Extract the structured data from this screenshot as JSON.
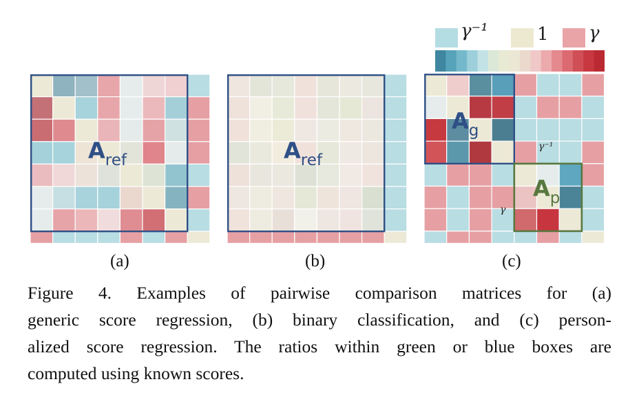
{
  "legend": {
    "low_label": "γ⁻¹",
    "mid_label": "1",
    "high_label": "γ",
    "low_color": "#b4dde3",
    "mid_color": "#ece9d0",
    "high_color": "#e9a4a8",
    "gradient": [
      "#3f87a0",
      "#57a4ba",
      "#74b9cb",
      "#9ccfd9",
      "#c2e2e5",
      "#dbe8d8",
      "#e8ead4",
      "#ece6d4",
      "#ecd9cd",
      "#efc8c7",
      "#ecaaac",
      "#e4898e",
      "#dc6a71",
      "#d04f57",
      "#c83841",
      "#bb2a33"
    ]
  },
  "panels": [
    {
      "id": "a",
      "label": "(a)",
      "matrix_label": "A",
      "matrix_sub": "ref"
    },
    {
      "id": "b",
      "label": "(b)",
      "matrix_label": "A",
      "matrix_sub": "ref"
    },
    {
      "id": "c",
      "label": "(c)",
      "g_label": "A",
      "g_sub": "g",
      "p_label": "A",
      "p_sub": "p",
      "gamma_inv": "γ⁻¹",
      "gamma": "γ"
    }
  ],
  "matrices": {
    "a": [
      [
        "#ece9d6",
        "#8fb3bf",
        "#a2c0c9",
        "#e7a6aa",
        "#e6ecec",
        "#efd6d6",
        "#f0d0d1",
        "#b8dde3"
      ],
      [
        "#c37076",
        "#ece9d6",
        "#a6d3dc",
        "#e7a6aa",
        "#e6ecec",
        "#ebb9bb",
        "#a5cfd8",
        "#e6a0a4"
      ],
      [
        "#c96d73",
        "#de8a8f",
        "#ece9d6",
        "#e9b5b8",
        "#e5ebea",
        "#e6a3a7",
        "#cfe1e1",
        "#e6a0a4"
      ],
      [
        "#a5d1da",
        "#a7d3dc",
        "#ede4d6",
        "#ece9d6",
        "#e2e3d9",
        "#e0858b",
        "#e5ebea",
        "#e6a0a4"
      ],
      [
        "#ebbcbf",
        "#f0d8d8",
        "#ede2da",
        "#dfe2da",
        "#ece9d6",
        "#dde3d5",
        "#92c4cf",
        "#b8dde3"
      ],
      [
        "#e6ecec",
        "#c6dfe2",
        "#a8d3dc",
        "#a6d2db",
        "#ead8cf",
        "#ece9d6",
        "#85b4c0",
        "#e6a0a4"
      ],
      [
        "#e6ecec",
        "#e6a4a8",
        "#ebb7b9",
        "#f0dcdc",
        "#df8d92",
        "#d16f75",
        "#ece9d6",
        "#b8dde3"
      ],
      [
        "#e6a0a4",
        "#b8dde3",
        "#b8dde3",
        "#b8dde3",
        "#e6a0a4",
        "#b8dde3",
        "#e6a0a4",
        "#ece9d6"
      ]
    ],
    "b": [
      [
        "#efe6df",
        "#e4e5d9",
        "#e6e8dc",
        "#f0e2db",
        "#e6e6da",
        "#ece9e1",
        "#e7e7de",
        "#b8dde3"
      ],
      [
        "#eee2da",
        "#f1efe4",
        "#e8ead9",
        "#f0e1dc",
        "#e3e6d9",
        "#e6e8d6",
        "#ece4de",
        "#b8dde3"
      ],
      [
        "#f0e2db",
        "#f0eee0",
        "#ecebd8",
        "#efe7e2",
        "#ecebe1",
        "#eee8e1",
        "#ebe8e0",
        "#b8dde3"
      ],
      [
        "#e1e4d9",
        "#e9e9dd",
        "#f2ecdf",
        "#f0e2db",
        "#e6e8d9",
        "#efe9e3",
        "#ece6df",
        "#b8dde3"
      ],
      [
        "#ede1d9",
        "#e9e6dd",
        "#ebe8e0",
        "#dee2d6",
        "#e7e8de",
        "#f1e9e3",
        "#f0e3dd",
        "#b8dde3"
      ],
      [
        "#eee6e1",
        "#eeece1",
        "#efe6df",
        "#e5e7d7",
        "#efe4dc",
        "#efe5e1",
        "#d9e0d2",
        "#b8dde3"
      ],
      [
        "#f0e3dc",
        "#eeebe0",
        "#e9dfd9",
        "#f1f0e9",
        "#eee6e1",
        "#efe4df",
        "#dfe3d9",
        "#b8dde3"
      ],
      [
        "#e6a0a4",
        "#e6a0a4",
        "#e6a0a4",
        "#e6a0a4",
        "#e6a0a4",
        "#e6a0a4",
        "#e6a0a4",
        "#ece9d6"
      ]
    ],
    "c": [
      [
        "#ece9d6",
        "#efcdcd",
        "#5a8fa0",
        "#5a9fba",
        "#e6a0a4",
        "#b8dde3",
        "#b8dde3",
        "#e6a0a4"
      ],
      [
        "#e6ecec",
        "#ece9d6",
        "#b73a43",
        "#c13e47",
        "#b8dde3",
        "#e6a0a4",
        "#e6a0a4",
        "#b8dde3"
      ],
      [
        "#c6393f",
        "#5d8da0",
        "#ece9d6",
        "#4c7e92",
        "#b8dde3",
        "#b8dde3",
        "#b8dde3",
        "#b8dde3"
      ],
      [
        "#d25459",
        "#5c98ab",
        "#b03940",
        "#ece9d6",
        "#e6a0a4",
        "#b8dde3",
        "#b8dde3",
        "#e6a0a4"
      ],
      [
        "#b8dde3",
        "#e6a0a4",
        "#e6a0a4",
        "#b8dde3",
        "#ece9d6",
        "#e6ecec",
        "#5fa7c0",
        "#e6a0a4"
      ],
      [
        "#e6a0a4",
        "#b8dde3",
        "#e6a0a4",
        "#e6a0a4",
        "#eac3c2",
        "#ece9d6",
        "#4c8497",
        "#b8dde3"
      ],
      [
        "#e6a0a4",
        "#b8dde3",
        "#e6a0a4",
        "#b8dde3",
        "#d06a6c",
        "#c7363f",
        "#ece9d6",
        "#b8dde3"
      ],
      [
        "#b8dde3",
        "#e6a0a4",
        "#e6a0a4",
        "#b8dde3",
        "#b8dde3",
        "#e6a0a4",
        "#b8dde3",
        "#ece9d6"
      ]
    ]
  },
  "caption": {
    "line1": "Figure 4. Examples of pairwise comparison matrices for (a)",
    "line2": "generic score regression, (b) binary classification, and (c) person-",
    "line3": "alized score regression. The ratios within green or blue boxes are",
    "line4": "computed using known scores."
  },
  "box_colors": {
    "blue": "#2f4f86",
    "green": "#58783f"
  }
}
